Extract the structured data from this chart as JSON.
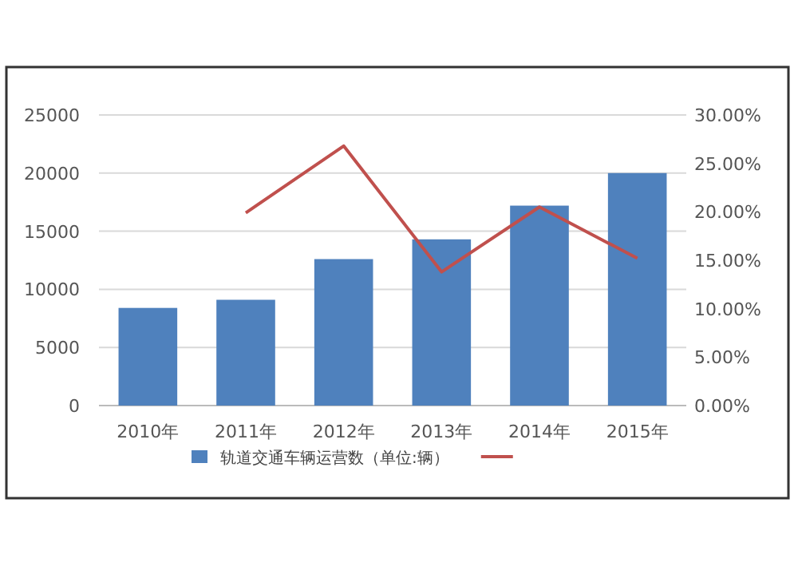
{
  "chart_data": {
    "type": "bar",
    "categories": [
      "2010年",
      "2011年",
      "2012年",
      "2013年",
      "2014年",
      "2015年"
    ],
    "series": [
      {
        "name": "轨道交通车辆运营数（单位:辆）",
        "color": "#4f81bd",
        "values": [
          8400,
          9100,
          12600,
          14300,
          17200,
          20000
        ]
      },
      {
        "type": "line",
        "axis": "y2",
        "color": "#c0504d",
        "values": [
          null,
          19.9,
          26.8,
          13.8,
          20.5,
          15.2
        ]
      }
    ],
    "ylim": [
      0,
      25000
    ],
    "yticks": [
      0,
      5000,
      10000,
      15000,
      20000,
      25000
    ],
    "y2lim": [
      0,
      30
    ],
    "y2ticks": [
      {
        "value": 0,
        "label": "0.00%"
      },
      {
        "value": 5,
        "label": "5.00%"
      },
      {
        "value": 10,
        "label": "10.00%"
      },
      {
        "value": 15,
        "label": "15.00%"
      },
      {
        "value": 20,
        "label": "20.00%"
      },
      {
        "value": 25,
        "label": "25.00%"
      },
      {
        "value": 30,
        "label": "30.00%"
      }
    ],
    "grid": "y",
    "legend": "bottom",
    "marker": "none",
    "line_style": "solid"
  }
}
